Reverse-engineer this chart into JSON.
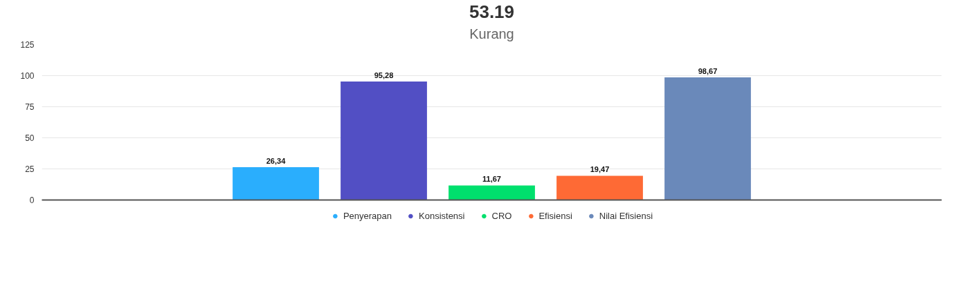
{
  "chart_data": {
    "type": "bar",
    "title": "53.19",
    "subtitle": "Kurang",
    "categories": [
      null
    ],
    "series": [
      {
        "name": "Penyerapan",
        "color": "#2aaefd",
        "values": [
          26.34
        ],
        "value_labels": [
          "26,34"
        ]
      },
      {
        "name": "Konsistensi",
        "color": "#524fc4",
        "values": [
          95.28
        ],
        "value_labels": [
          "95,28"
        ]
      },
      {
        "name": "CRO",
        "color": "#00e06d",
        "values": [
          11.67
        ],
        "value_labels": [
          "11,67"
        ]
      },
      {
        "name": "Efisiensi",
        "color": "#fe6a35",
        "values": [
          19.47
        ],
        "value_labels": [
          "19,47"
        ]
      },
      {
        "name": "Nilai Efisiensi",
        "color": "#6a89ba",
        "values": [
          98.67
        ],
        "value_labels": [
          "98,67"
        ]
      }
    ],
    "ylim": [
      0,
      125
    ],
    "yticks": [
      0,
      25,
      50,
      75,
      100,
      125
    ],
    "grid": "y",
    "legend": "bottom"
  }
}
